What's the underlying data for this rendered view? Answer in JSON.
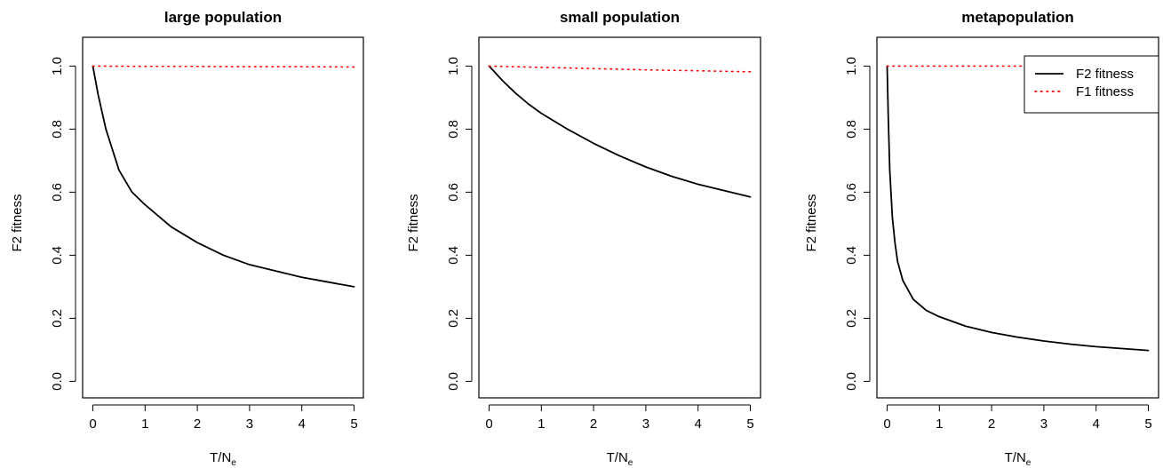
{
  "chart_data": [
    {
      "type": "line",
      "title": "large population",
      "xlabel": "T/N",
      "xlabel_sub": "e",
      "ylabel": "F2 fitness",
      "xlim": [
        0,
        5
      ],
      "ylim": [
        0,
        1
      ],
      "xticks": [
        "0",
        "1",
        "2",
        "3",
        "4",
        "5"
      ],
      "yticks": [
        "0.0",
        "0.2",
        "0.4",
        "0.6",
        "0.8",
        "1.0"
      ],
      "series": [
        {
          "key": "f2",
          "color": "#000000",
          "dash": "solid",
          "x": [
            0,
            0.1,
            0.25,
            0.5,
            0.75,
            1.0,
            1.5,
            2.0,
            2.5,
            3.0,
            3.5,
            4.0,
            4.5,
            5.0
          ],
          "y": [
            1.0,
            0.91,
            0.8,
            0.67,
            0.6,
            0.56,
            0.49,
            0.44,
            0.4,
            0.37,
            0.35,
            0.33,
            0.315,
            0.3
          ]
        },
        {
          "key": "f1",
          "color": "#ff0000",
          "dash": "dotted",
          "x": [
            0,
            1,
            2,
            3,
            4,
            5
          ],
          "y": [
            1.0,
            0.999,
            0.999,
            0.998,
            0.998,
            0.997
          ]
        }
      ]
    },
    {
      "type": "line",
      "title": "small population",
      "xlabel": "T/N",
      "xlabel_sub": "e",
      "ylabel": "F2 fitness",
      "xlim": [
        0,
        5
      ],
      "ylim": [
        0,
        1
      ],
      "xticks": [
        "0",
        "1",
        "2",
        "3",
        "4",
        "5"
      ],
      "yticks": [
        "0.0",
        "0.2",
        "0.4",
        "0.6",
        "0.8",
        "1.0"
      ],
      "series": [
        {
          "key": "f2",
          "color": "#000000",
          "dash": "solid",
          "x": [
            0,
            0.25,
            0.5,
            0.75,
            1.0,
            1.5,
            2.0,
            2.5,
            3.0,
            3.5,
            4.0,
            4.5,
            5.0
          ],
          "y": [
            1.0,
            0.955,
            0.915,
            0.88,
            0.85,
            0.8,
            0.755,
            0.715,
            0.68,
            0.65,
            0.625,
            0.605,
            0.585
          ]
        },
        {
          "key": "f1",
          "color": "#ff0000",
          "dash": "dotted",
          "x": [
            0,
            1,
            2,
            3,
            4,
            5
          ],
          "y": [
            1.0,
            0.996,
            0.992,
            0.988,
            0.985,
            0.982
          ]
        }
      ]
    },
    {
      "type": "line",
      "title": "metapopulation",
      "xlabel": "T/N",
      "xlabel_sub": "e",
      "ylabel": "F2 fitness",
      "xlim": [
        0,
        5
      ],
      "ylim": [
        0,
        1
      ],
      "xticks": [
        "0",
        "1",
        "2",
        "3",
        "4",
        "5"
      ],
      "yticks": [
        "0.0",
        "0.2",
        "0.4",
        "0.6",
        "0.8",
        "1.0"
      ],
      "legend": {
        "placement": "top-right",
        "entries": [
          {
            "label": "F2 fitness",
            "color": "#000000",
            "dash": "solid"
          },
          {
            "label": "F1 fitness",
            "color": "#ff0000",
            "dash": "dotted"
          }
        ]
      },
      "series": [
        {
          "key": "f2",
          "color": "#000000",
          "dash": "solid",
          "x": [
            0,
            0.02,
            0.05,
            0.1,
            0.15,
            0.2,
            0.3,
            0.5,
            0.75,
            1.0,
            1.5,
            2.0,
            2.5,
            3.0,
            3.5,
            4.0,
            4.5,
            5.0
          ],
          "y": [
            1.0,
            0.85,
            0.67,
            0.52,
            0.44,
            0.38,
            0.32,
            0.26,
            0.225,
            0.205,
            0.175,
            0.155,
            0.14,
            0.128,
            0.118,
            0.11,
            0.104,
            0.098
          ]
        },
        {
          "key": "f1",
          "color": "#ff0000",
          "dash": "dotted",
          "x": [
            0,
            1,
            2,
            3
          ],
          "y": [
            1.0,
            1.0,
            1.0,
            1.0
          ]
        }
      ]
    }
  ]
}
